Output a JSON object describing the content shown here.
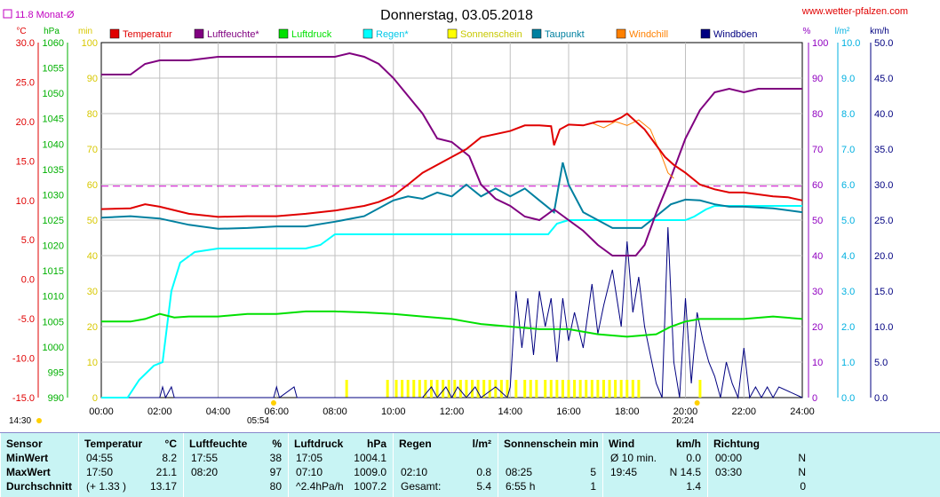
{
  "header": {
    "title": "Donnerstag, 03.05.2018",
    "website": "www.wetter-pfalzen.com",
    "monthly_avg": "11.8 Monat-Ø"
  },
  "chart_data": {
    "type": "line",
    "title": "Donnerstag, 03.05.2018",
    "legend_position": "top",
    "x_ticks": [
      "00:00",
      "02:00",
      "04:00",
      "06:00",
      "08:00",
      "10:00",
      "12:00",
      "14:00",
      "16:00",
      "18:00",
      "20:00",
      "22:00",
      "24:00"
    ],
    "sunrise": "05:54",
    "sunset": "20:24",
    "dawn": "14:30",
    "axes": {
      "temp": {
        "unit": "°C",
        "ticks": [
          "30.0",
          "25.0",
          "20.0",
          "15.0",
          "10.0",
          "5.0",
          "0.0",
          "-5.0",
          "-10.0",
          "-15.0"
        ],
        "ylim": [
          -15,
          30
        ],
        "color": "#e00000"
      },
      "pressure": {
        "unit": "hPa",
        "ticks": [
          "1060",
          "1055",
          "1050",
          "1045",
          "1040",
          "1035",
          "1030",
          "1025",
          "1020",
          "1015",
          "1010",
          "1005",
          "1000",
          "995",
          "990"
        ],
        "ylim": [
          990,
          1060
        ],
        "color": "#00b000"
      },
      "sun": {
        "unit": "min",
        "ticks": [
          "100",
          "90",
          "80",
          "70",
          "60",
          "50",
          "40",
          "30",
          "20",
          "10",
          "0"
        ],
        "ylim": [
          0,
          100
        ],
        "color": "#d8c800"
      },
      "humidity": {
        "unit": "%",
        "ticks": [
          "100",
          "90",
          "80",
          "70",
          "60",
          "50",
          "40",
          "30",
          "20",
          "10",
          "0"
        ],
        "ylim": [
          0,
          100
        ],
        "color": "#9000c0"
      },
      "rain": {
        "unit": "l/m²",
        "ticks": [
          "10.0",
          "9.0",
          "8.0",
          "7.0",
          "6.0",
          "5.0",
          "4.0",
          "3.0",
          "2.0",
          "1.0",
          "0.0"
        ],
        "ylim": [
          0,
          10
        ],
        "color": "#00b0e0"
      },
      "wind": {
        "unit": "km/h",
        "ticks": [
          "50.0",
          "45.0",
          "40.0",
          "35.0",
          "30.0",
          "25.0",
          "20.0",
          "15.0",
          "10.0",
          "5.0",
          "0.0"
        ],
        "ylim": [
          0,
          50
        ],
        "color": "#000080"
      }
    },
    "legend": [
      {
        "name": "Temperatur",
        "color": "#e00000"
      },
      {
        "name": "Luftfeuchte*",
        "color": "#800080"
      },
      {
        "name": "Luftdruck",
        "color": "#00e000"
      },
      {
        "name": "Regen*",
        "color": "#00ffff"
      },
      {
        "name": "Sonnenschein",
        "color": "#ffff00"
      },
      {
        "name": "Taupunkt",
        "color": "#0080a0"
      },
      {
        "name": "Windchill",
        "color": "#ff8000"
      },
      {
        "name": "Windböen",
        "color": "#000080"
      }
    ],
    "monthly_avg_temp": 11.8,
    "series": [
      {
        "name": "Temperatur",
        "axis": "temp",
        "color": "#e00000",
        "x": [
          0,
          1,
          1.5,
          2,
          3,
          4,
          5,
          6,
          7,
          8,
          9,
          9.5,
          10,
          10.5,
          11,
          12,
          12.5,
          13,
          14,
          14.5,
          15,
          15.4,
          15.5,
          15.7,
          16,
          16.5,
          17,
          17.5,
          17.8,
          18,
          18.3,
          18.6,
          19,
          19.3,
          19.6,
          20,
          20.5,
          21,
          21.5,
          22,
          23,
          23.5,
          24
        ],
        "y": [
          8.9,
          9.0,
          9.5,
          9.2,
          8.3,
          7.9,
          8.0,
          8.0,
          8.3,
          8.7,
          9.3,
          9.8,
          10.6,
          12.0,
          13.5,
          15.5,
          16.5,
          18.0,
          18.8,
          19.5,
          19.5,
          19.4,
          17.0,
          19.0,
          19.6,
          19.5,
          20.0,
          20.0,
          20.5,
          21.0,
          20.0,
          19.0,
          17.0,
          15.5,
          14.5,
          13.5,
          12.0,
          11.4,
          11.0,
          11.0,
          10.5,
          10.4,
          10.0
        ]
      },
      {
        "name": "Windchill",
        "axis": "temp",
        "color": "#ff8000",
        "x": [
          16.8,
          17.2,
          17.6,
          18,
          18.4,
          18.8,
          19.2,
          19.4,
          19.6
        ],
        "y": [
          19.8,
          19.2,
          20.0,
          19.5,
          20.2,
          19.0,
          15.5,
          13.5,
          12.8
        ]
      },
      {
        "name": "Luftfeuchte*",
        "axis": "humidity",
        "color": "#800080",
        "x": [
          0,
          1,
          1.5,
          2,
          3,
          4,
          5,
          6,
          7,
          8,
          8.5,
          9,
          9.5,
          10,
          10.5,
          11,
          11.5,
          12,
          12.3,
          12.6,
          13,
          13.5,
          14,
          14.5,
          15,
          15.5,
          16,
          16.5,
          17,
          17.5,
          18,
          18.3,
          18.6,
          19,
          19.5,
          20,
          20.5,
          21,
          21.5,
          22,
          22.5,
          23,
          24
        ],
        "y": [
          91,
          91,
          94,
          95,
          95,
          96,
          96,
          96,
          96,
          96,
          97,
          96,
          94,
          90,
          85,
          80,
          73,
          72,
          70,
          68,
          60,
          56,
          54,
          51,
          50,
          53,
          50,
          47,
          43,
          40,
          40,
          40,
          43,
          52,
          62,
          73,
          81,
          86,
          87,
          86,
          87,
          87,
          87
        ]
      },
      {
        "name": "Taupunkt",
        "axis": "temp",
        "color": "#0080a0",
        "x": [
          0,
          1,
          2,
          3,
          4,
          5,
          6,
          7,
          8,
          9,
          10,
          10.5,
          11,
          11.5,
          12,
          12.5,
          13,
          13.5,
          14,
          14.5,
          15,
          15.5,
          15.8,
          16,
          16.5,
          17,
          17.5,
          18,
          18.5,
          19,
          19.5,
          20,
          20.5,
          21,
          21.5,
          22,
          23,
          24
        ],
        "y": [
          7.8,
          8.0,
          7.7,
          6.9,
          6.4,
          6.5,
          6.7,
          6.7,
          7.3,
          8.0,
          10.0,
          10.5,
          10.2,
          11.0,
          10.5,
          12.0,
          10.5,
          11.5,
          10.5,
          11.5,
          10.0,
          8.5,
          14.8,
          12.0,
          8.5,
          7.5,
          6.5,
          6.5,
          6.5,
          8.0,
          9.5,
          10.1,
          10.0,
          9.5,
          9.2,
          9.2,
          9.0,
          8.5
        ]
      },
      {
        "name": "Luftdruck",
        "axis": "pressure",
        "color": "#00e000",
        "x": [
          0,
          1,
          1.5,
          2,
          2.5,
          3,
          4,
          5,
          6,
          7,
          8,
          9,
          10,
          11,
          12,
          12.5,
          13,
          14,
          15,
          16,
          17,
          18,
          19,
          19.5,
          20,
          20.5,
          21,
          22,
          23,
          24
        ],
        "y": [
          1005.0,
          1005.0,
          1005.5,
          1006.5,
          1005.8,
          1006.0,
          1006.0,
          1006.5,
          1006.5,
          1007.0,
          1007.0,
          1006.8,
          1006.5,
          1006.0,
          1005.5,
          1005.0,
          1004.5,
          1004.0,
          1003.5,
          1003.5,
          1002.5,
          1002.0,
          1002.5,
          1004.0,
          1005.0,
          1005.5,
          1005.5,
          1005.5,
          1006.0,
          1005.5
        ]
      },
      {
        "name": "Regen*",
        "axis": "rain",
        "color": "#00ffff",
        "x": [
          0,
          0.9,
          1.3,
          1.8,
          2.1,
          2.4,
          2.7,
          3.2,
          4,
          5,
          6,
          7,
          7.5,
          8,
          9,
          10,
          11,
          12,
          13,
          14,
          15,
          15.3,
          15.6,
          16,
          17,
          18,
          19,
          20,
          20.3,
          20.7,
          21,
          22,
          23,
          24
        ],
        "y": [
          0,
          0,
          0.5,
          0.9,
          1.0,
          3.0,
          3.8,
          4.1,
          4.2,
          4.2,
          4.2,
          4.2,
          4.3,
          4.6,
          4.6,
          4.6,
          4.6,
          4.6,
          4.6,
          4.6,
          4.6,
          4.6,
          4.9,
          5.0,
          5.0,
          5.0,
          5.0,
          5.0,
          5.1,
          5.3,
          5.4,
          5.4,
          5.4,
          5.4
        ]
      },
      {
        "name": "Windböen",
        "axis": "wind",
        "color": "#000080",
        "x": [
          0,
          2,
          2.1,
          2.2,
          2.4,
          2.5,
          2.6,
          5.9,
          6.0,
          6.1,
          6.6,
          6.7,
          11,
          11.3,
          11.5,
          11.8,
          12,
          12.2,
          12.5,
          12.8,
          13,
          13.5,
          13.9,
          14.0,
          14.2,
          14.4,
          14.6,
          14.8,
          15,
          15.2,
          15.4,
          15.6,
          15.8,
          16,
          16.2,
          16.5,
          16.8,
          17,
          17.2,
          17.5,
          17.8,
          18,
          18.2,
          18.4,
          18.6,
          18.8,
          19,
          19.2,
          19.4,
          19.6,
          19.8,
          20,
          20.2,
          20.4,
          20.6,
          20.8,
          21,
          21.2,
          21.4,
          21.6,
          21.8,
          22,
          22.2,
          22.4,
          22.6,
          22.8,
          23,
          23.2,
          24
        ],
        "y": [
          0,
          0,
          1.5,
          0,
          1.5,
          0,
          0,
          0,
          1.5,
          0,
          1.5,
          0,
          0,
          1.5,
          0,
          1.5,
          0,
          1.5,
          0,
          1.5,
          0,
          1.5,
          0,
          1.5,
          15,
          7,
          14,
          6,
          15,
          10,
          14,
          5,
          14,
          8,
          12,
          7,
          16,
          9,
          13,
          18,
          10,
          22,
          12,
          17,
          10,
          6,
          2,
          0,
          24,
          5,
          0,
          14,
          2,
          12,
          8,
          5,
          3,
          0,
          5,
          2,
          0,
          7,
          0,
          1.5,
          0,
          1.5,
          0,
          1.5,
          0
        ]
      },
      {
        "name": "Sonnenschein",
        "axis": "sun",
        "color": "#ffff00",
        "bars_x": [
          8.4,
          9.8,
          10.1,
          10.3,
          10.5,
          10.7,
          10.9,
          11.1,
          11.3,
          11.5,
          11.7,
          11.9,
          12.1,
          12.3,
          12.5,
          12.7,
          12.9,
          13.1,
          13.3,
          13.5,
          13.7,
          13.9,
          14.2,
          14.5,
          14.7,
          14.9,
          15.2,
          15.4,
          15.6,
          15.8,
          16,
          16.2,
          16.4,
          16.6,
          16.8,
          17,
          17.2,
          17.4,
          17.6,
          17.8,
          18.0,
          18.2,
          18.4,
          20.5
        ],
        "bar_value": 5
      }
    ]
  },
  "table": {
    "headers": {
      "sensor": "Sensor",
      "temp": "Temperatur",
      "temp_unit": "°C",
      "hum": "Luftfeuchte",
      "hum_unit": "%",
      "press": "Luftdruck",
      "press_unit": "hPa",
      "rain": "Regen",
      "rain_unit": "l/m²",
      "sun": "Sonnenschein min",
      "wind": "Wind",
      "wind_unit": "km/h",
      "dir": "Richtung"
    },
    "rows": [
      {
        "label": "MinWert",
        "t_time": "04:55",
        "t_val": "8.2",
        "h_time": "17:55",
        "h_val": "38",
        "p_time": "17:05",
        "p_val": "1004.1",
        "r_time": "",
        "r_val": "",
        "s_time": "",
        "s_val": "",
        "w_time": "Ø 10 min.",
        "w_val": "0.0",
        "d_time": "00:00",
        "d_val": "N"
      },
      {
        "label": "MaxWert",
        "t_time": "17:50",
        "t_val": "21.1",
        "h_time": "08:20",
        "h_val": "97",
        "p_time": "07:10",
        "p_val": "1009.0",
        "r_time": "02:10",
        "r_val": "0.8",
        "s_time": "08:25",
        "s_val": "5",
        "w_time": "19:45",
        "w_val": "N 14.5",
        "d_time": "03:30",
        "d_val": "N"
      },
      {
        "label": "Durchschnitt",
        "t_time": "(+ 1.33 )",
        "t_val": "13.17",
        "h_time": "",
        "h_val": "80",
        "p_time": "^2.4hPa/h",
        "p_val": "1007.2",
        "r_time": "Gesamt:",
        "r_val": "5.4",
        "s_time": "6:55 h",
        "s_val": "1",
        "w_time": "",
        "w_val": "1.4",
        "d_time": "",
        "d_val": "0"
      }
    ]
  }
}
